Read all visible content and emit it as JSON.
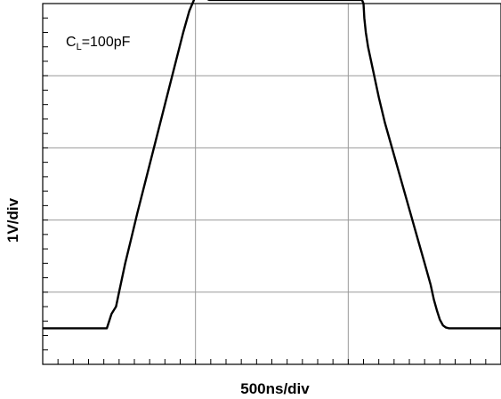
{
  "chart_data": {
    "type": "line",
    "xlabel": "500ns/div",
    "ylabel": "1V/div",
    "annotation": {
      "base": "C",
      "subscript": "L",
      "rest": "=100pF"
    },
    "x_divisions": 6,
    "y_divisions": 5,
    "minor_ticks_per_division": 5,
    "xlim": [
      0,
      3000
    ],
    "ylim": [
      -0.5,
      4.5
    ],
    "grid": true,
    "series": [
      {
        "x": [
          0,
          420,
          450,
          480,
          500,
          540,
          580,
          620,
          680,
          740,
          800,
          860,
          920,
          960,
          1000,
          1010,
          1020,
          1030,
          1040,
          1050,
          1060,
          1070,
          1090,
          1110,
          2090,
          2100,
          2105,
          2115,
          2130,
          2160,
          2200,
          2240,
          2300,
          2360,
          2420,
          2460,
          2500,
          2540,
          2560,
          2580,
          2600,
          2620,
          2640,
          2660,
          2700,
          3000
        ],
        "y": [
          0,
          0,
          0.2,
          0.3,
          0.5,
          0.9,
          1.25,
          1.6,
          2.1,
          2.6,
          3.1,
          3.6,
          4.1,
          4.4,
          4.6,
          4.66,
          4.7,
          4.72,
          4.7,
          4.65,
          4.6,
          4.57,
          4.55,
          4.55,
          4.55,
          4.5,
          4.3,
          4.1,
          3.9,
          3.6,
          3.2,
          2.85,
          2.4,
          1.95,
          1.5,
          1.2,
          0.9,
          0.6,
          0.4,
          0.25,
          0.12,
          0.04,
          0.01,
          0,
          0,
          0
        ]
      }
    ]
  }
}
